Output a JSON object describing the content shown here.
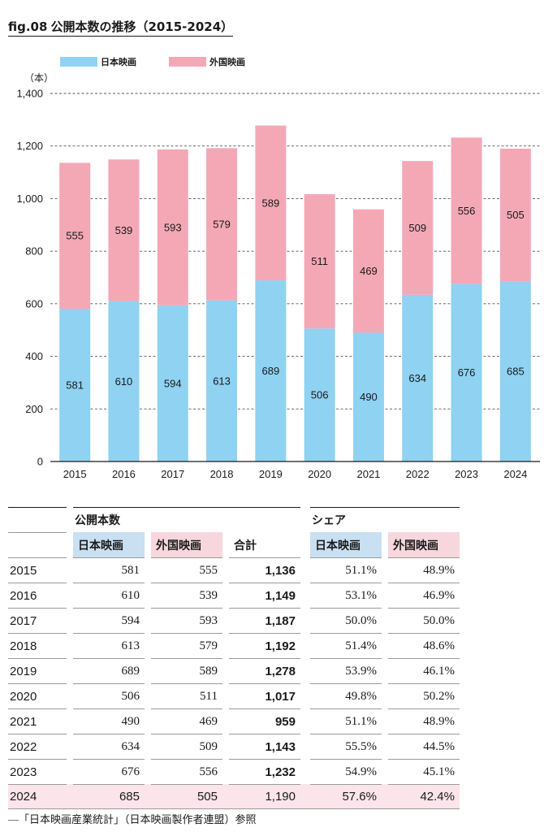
{
  "figure": {
    "number": "fig.08",
    "title": "公開本数の推移（2015-2024）"
  },
  "chart_data": {
    "type": "bar",
    "stacked": true,
    "categories": [
      "2015",
      "2016",
      "2017",
      "2018",
      "2019",
      "2020",
      "2021",
      "2022",
      "2023",
      "2024"
    ],
    "series": [
      {
        "name": "日本映画",
        "color": "#8fd2f1",
        "values": [
          581,
          610,
          594,
          613,
          689,
          506,
          490,
          634,
          676,
          685
        ]
      },
      {
        "name": "外国映画",
        "color": "#f4a8b6",
        "values": [
          555,
          539,
          593,
          579,
          589,
          511,
          469,
          509,
          556,
          505
        ]
      }
    ],
    "ylabel": "（本）",
    "ylim": [
      0,
      1400
    ],
    "yticks": [
      0,
      200,
      400,
      600,
      800,
      1000,
      1200,
      1400
    ],
    "ytick_labels": [
      "0",
      "200",
      "400",
      "600",
      "800",
      "1,000",
      "1,200",
      "1,400"
    ],
    "grid": true,
    "legend_position": "top-left"
  },
  "table": {
    "group_headers": {
      "counts": "公開本数",
      "share": "シェア"
    },
    "columns": {
      "jp": "日本映画",
      "foreign": "外国映画",
      "total": "合計",
      "jp_share": "日本映画",
      "foreign_share": "外国映画"
    },
    "rows": [
      {
        "year": "2015",
        "jp": "581",
        "foreign": "555",
        "total": "1,136",
        "jp_share": "51.1%",
        "foreign_share": "48.9%"
      },
      {
        "year": "2016",
        "jp": "610",
        "foreign": "539",
        "total": "1,149",
        "jp_share": "53.1%",
        "foreign_share": "46.9%"
      },
      {
        "year": "2017",
        "jp": "594",
        "foreign": "593",
        "total": "1,187",
        "jp_share": "50.0%",
        "foreign_share": "50.0%"
      },
      {
        "year": "2018",
        "jp": "613",
        "foreign": "579",
        "total": "1,192",
        "jp_share": "51.4%",
        "foreign_share": "48.6%"
      },
      {
        "year": "2019",
        "jp": "689",
        "foreign": "589",
        "total": "1,278",
        "jp_share": "53.9%",
        "foreign_share": "46.1%"
      },
      {
        "year": "2020",
        "jp": "506",
        "foreign": "511",
        "total": "1,017",
        "jp_share": "49.8%",
        "foreign_share": "50.2%"
      },
      {
        "year": "2021",
        "jp": "490",
        "foreign": "469",
        "total": "959",
        "jp_share": "51.1%",
        "foreign_share": "48.9%"
      },
      {
        "year": "2022",
        "jp": "634",
        "foreign": "509",
        "total": "1,143",
        "jp_share": "55.5%",
        "foreign_share": "44.5%"
      },
      {
        "year": "2023",
        "jp": "676",
        "foreign": "556",
        "total": "1,232",
        "jp_share": "54.9%",
        "foreign_share": "45.1%"
      },
      {
        "year": "2024",
        "jp": "685",
        "foreign": "505",
        "total": "1,190",
        "jp_share": "57.6%",
        "foreign_share": "42.4%"
      }
    ]
  },
  "source": "―「日本映画産業統計」（日本映画製作者連盟）参照"
}
